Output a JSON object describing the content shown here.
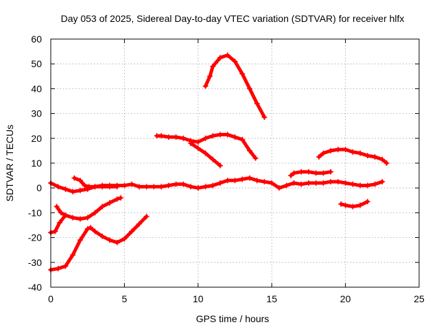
{
  "colors": {
    "series": "#ff0000",
    "grid": "#a0a0a0",
    "axis": "#000000",
    "background": "#ffffff"
  },
  "chart_data": {
    "type": "scatter",
    "title": "Day 053 of 2025, Sidereal Day-to-day VTEC variation (SDTVAR) for receiver hlfx",
    "xlabel": "GPS time / hours",
    "ylabel": "SDTVAR / TECUs",
    "xlim": [
      0,
      25
    ],
    "ylim": [
      -40,
      60
    ],
    "xticks": [
      0,
      5,
      10,
      15,
      20,
      25
    ],
    "yticks": [
      -40,
      -30,
      -20,
      -10,
      0,
      10,
      20,
      30,
      40,
      50,
      60
    ],
    "grid": true,
    "legend": "none",
    "series": [
      {
        "name": "trace-1",
        "x": [
          0.0,
          0.5,
          1.0,
          1.5,
          2.0,
          2.5,
          3.0,
          3.5,
          4.0,
          4.5,
          5.0,
          5.5,
          6.0,
          6.5,
          7.0,
          7.5,
          8.0,
          8.5,
          9.0,
          9.5,
          10.0
        ],
        "y": [
          2.0,
          0.5,
          -0.5,
          -1.5,
          -1.0,
          -0.5,
          0.5,
          1.0,
          1.0,
          1.0,
          1.0,
          1.5,
          0.5,
          0.5,
          0.5,
          0.5,
          1.0,
          1.5,
          1.5,
          0.5,
          0.0
        ]
      },
      {
        "name": "trace-2",
        "x": [
          1.6,
          2.0,
          2.3,
          2.6,
          3.0,
          3.5,
          4.0,
          4.5
        ],
        "y": [
          4.0,
          3.0,
          1.0,
          0.5,
          0.5,
          0.5,
          0.5,
          0.5
        ]
      },
      {
        "name": "trace-3",
        "x": [
          10.0,
          10.5,
          11.0,
          11.5,
          12.0,
          12.5,
          13.0,
          13.5,
          14.0,
          14.5,
          15.0,
          15.5,
          16.0,
          16.5,
          17.0,
          17.5,
          18.0,
          18.5,
          19.0,
          19.5,
          20.0,
          20.5,
          21.0,
          21.5,
          22.0,
          22.5
        ],
        "y": [
          0.0,
          0.5,
          1.0,
          2.0,
          3.0,
          3.0,
          3.5,
          4.0,
          3.0,
          2.5,
          2.0,
          0.0,
          1.0,
          2.0,
          1.5,
          2.0,
          2.0,
          2.0,
          2.5,
          2.5,
          2.0,
          1.5,
          1.0,
          1.0,
          1.5,
          2.5
        ]
      },
      {
        "name": "trace-4",
        "x": [
          0.0,
          0.3,
          0.6,
          1.0,
          1.5,
          2.0,
          2.5,
          3.0,
          3.5,
          4.0,
          4.5,
          4.75
        ],
        "y": [
          -18.0,
          -17.5,
          -14.0,
          -11.0,
          -12.0,
          -12.5,
          -12.0,
          -10.0,
          -7.5,
          -6.0,
          -4.5,
          -4.0
        ]
      },
      {
        "name": "trace-5",
        "x": [
          0.4,
          0.7,
          1.0
        ],
        "y": [
          -7.5,
          -10.0,
          -11.0
        ]
      },
      {
        "name": "trace-6",
        "x": [
          0.0,
          0.5,
          1.0,
          1.5,
          2.0,
          2.5,
          2.7,
          3.0,
          3.5,
          4.0,
          4.5,
          5.0,
          5.5,
          6.0,
          6.5
        ],
        "y": [
          -33.0,
          -32.5,
          -31.5,
          -27.0,
          -21.0,
          -16.5,
          -16.0,
          -17.5,
          -19.5,
          -21.0,
          -22.0,
          -20.5,
          -17.5,
          -14.5,
          -11.5
        ]
      },
      {
        "name": "trace-7",
        "x": [
          10.5,
          10.8,
          11.0,
          11.5,
          12.0,
          12.5,
          13.0,
          13.5,
          14.0,
          14.5
        ],
        "y": [
          41.0,
          45.0,
          49.0,
          52.5,
          53.5,
          51.0,
          46.0,
          40.0,
          34.0,
          28.5
        ]
      },
      {
        "name": "trace-8",
        "x": [
          7.2,
          7.5,
          8.0,
          8.5,
          9.0,
          9.5,
          10.0,
          10.5,
          11.0,
          11.5,
          12.0,
          12.5,
          13.0,
          13.5,
          13.9
        ],
        "y": [
          21.0,
          21.0,
          20.5,
          20.5,
          20.0,
          19.0,
          18.5,
          20.0,
          21.0,
          21.5,
          21.5,
          20.5,
          19.5,
          15.0,
          12.0
        ]
      },
      {
        "name": "trace-9",
        "x": [
          9.5,
          10.0,
          10.5,
          11.0,
          11.5
        ],
        "y": [
          18.0,
          16.0,
          14.0,
          11.5,
          9.0
        ]
      },
      {
        "name": "trace-10",
        "x": [
          16.3,
          16.5,
          17.0,
          17.5,
          18.0,
          18.5,
          19.0
        ],
        "y": [
          5.0,
          6.0,
          6.5,
          6.5,
          6.0,
          6.0,
          6.5
        ]
      },
      {
        "name": "trace-11",
        "x": [
          18.2,
          18.5,
          19.0,
          19.5,
          20.0,
          20.5,
          21.0,
          21.5,
          22.0,
          22.5,
          22.8
        ],
        "y": [
          12.5,
          14.0,
          15.0,
          15.5,
          15.5,
          14.5,
          14.0,
          13.0,
          12.5,
          11.5,
          10.0
        ]
      },
      {
        "name": "trace-12",
        "x": [
          19.7,
          20.0,
          20.5,
          21.0,
          21.5
        ],
        "y": [
          -6.5,
          -7.0,
          -7.5,
          -7.0,
          -5.5
        ]
      }
    ]
  }
}
